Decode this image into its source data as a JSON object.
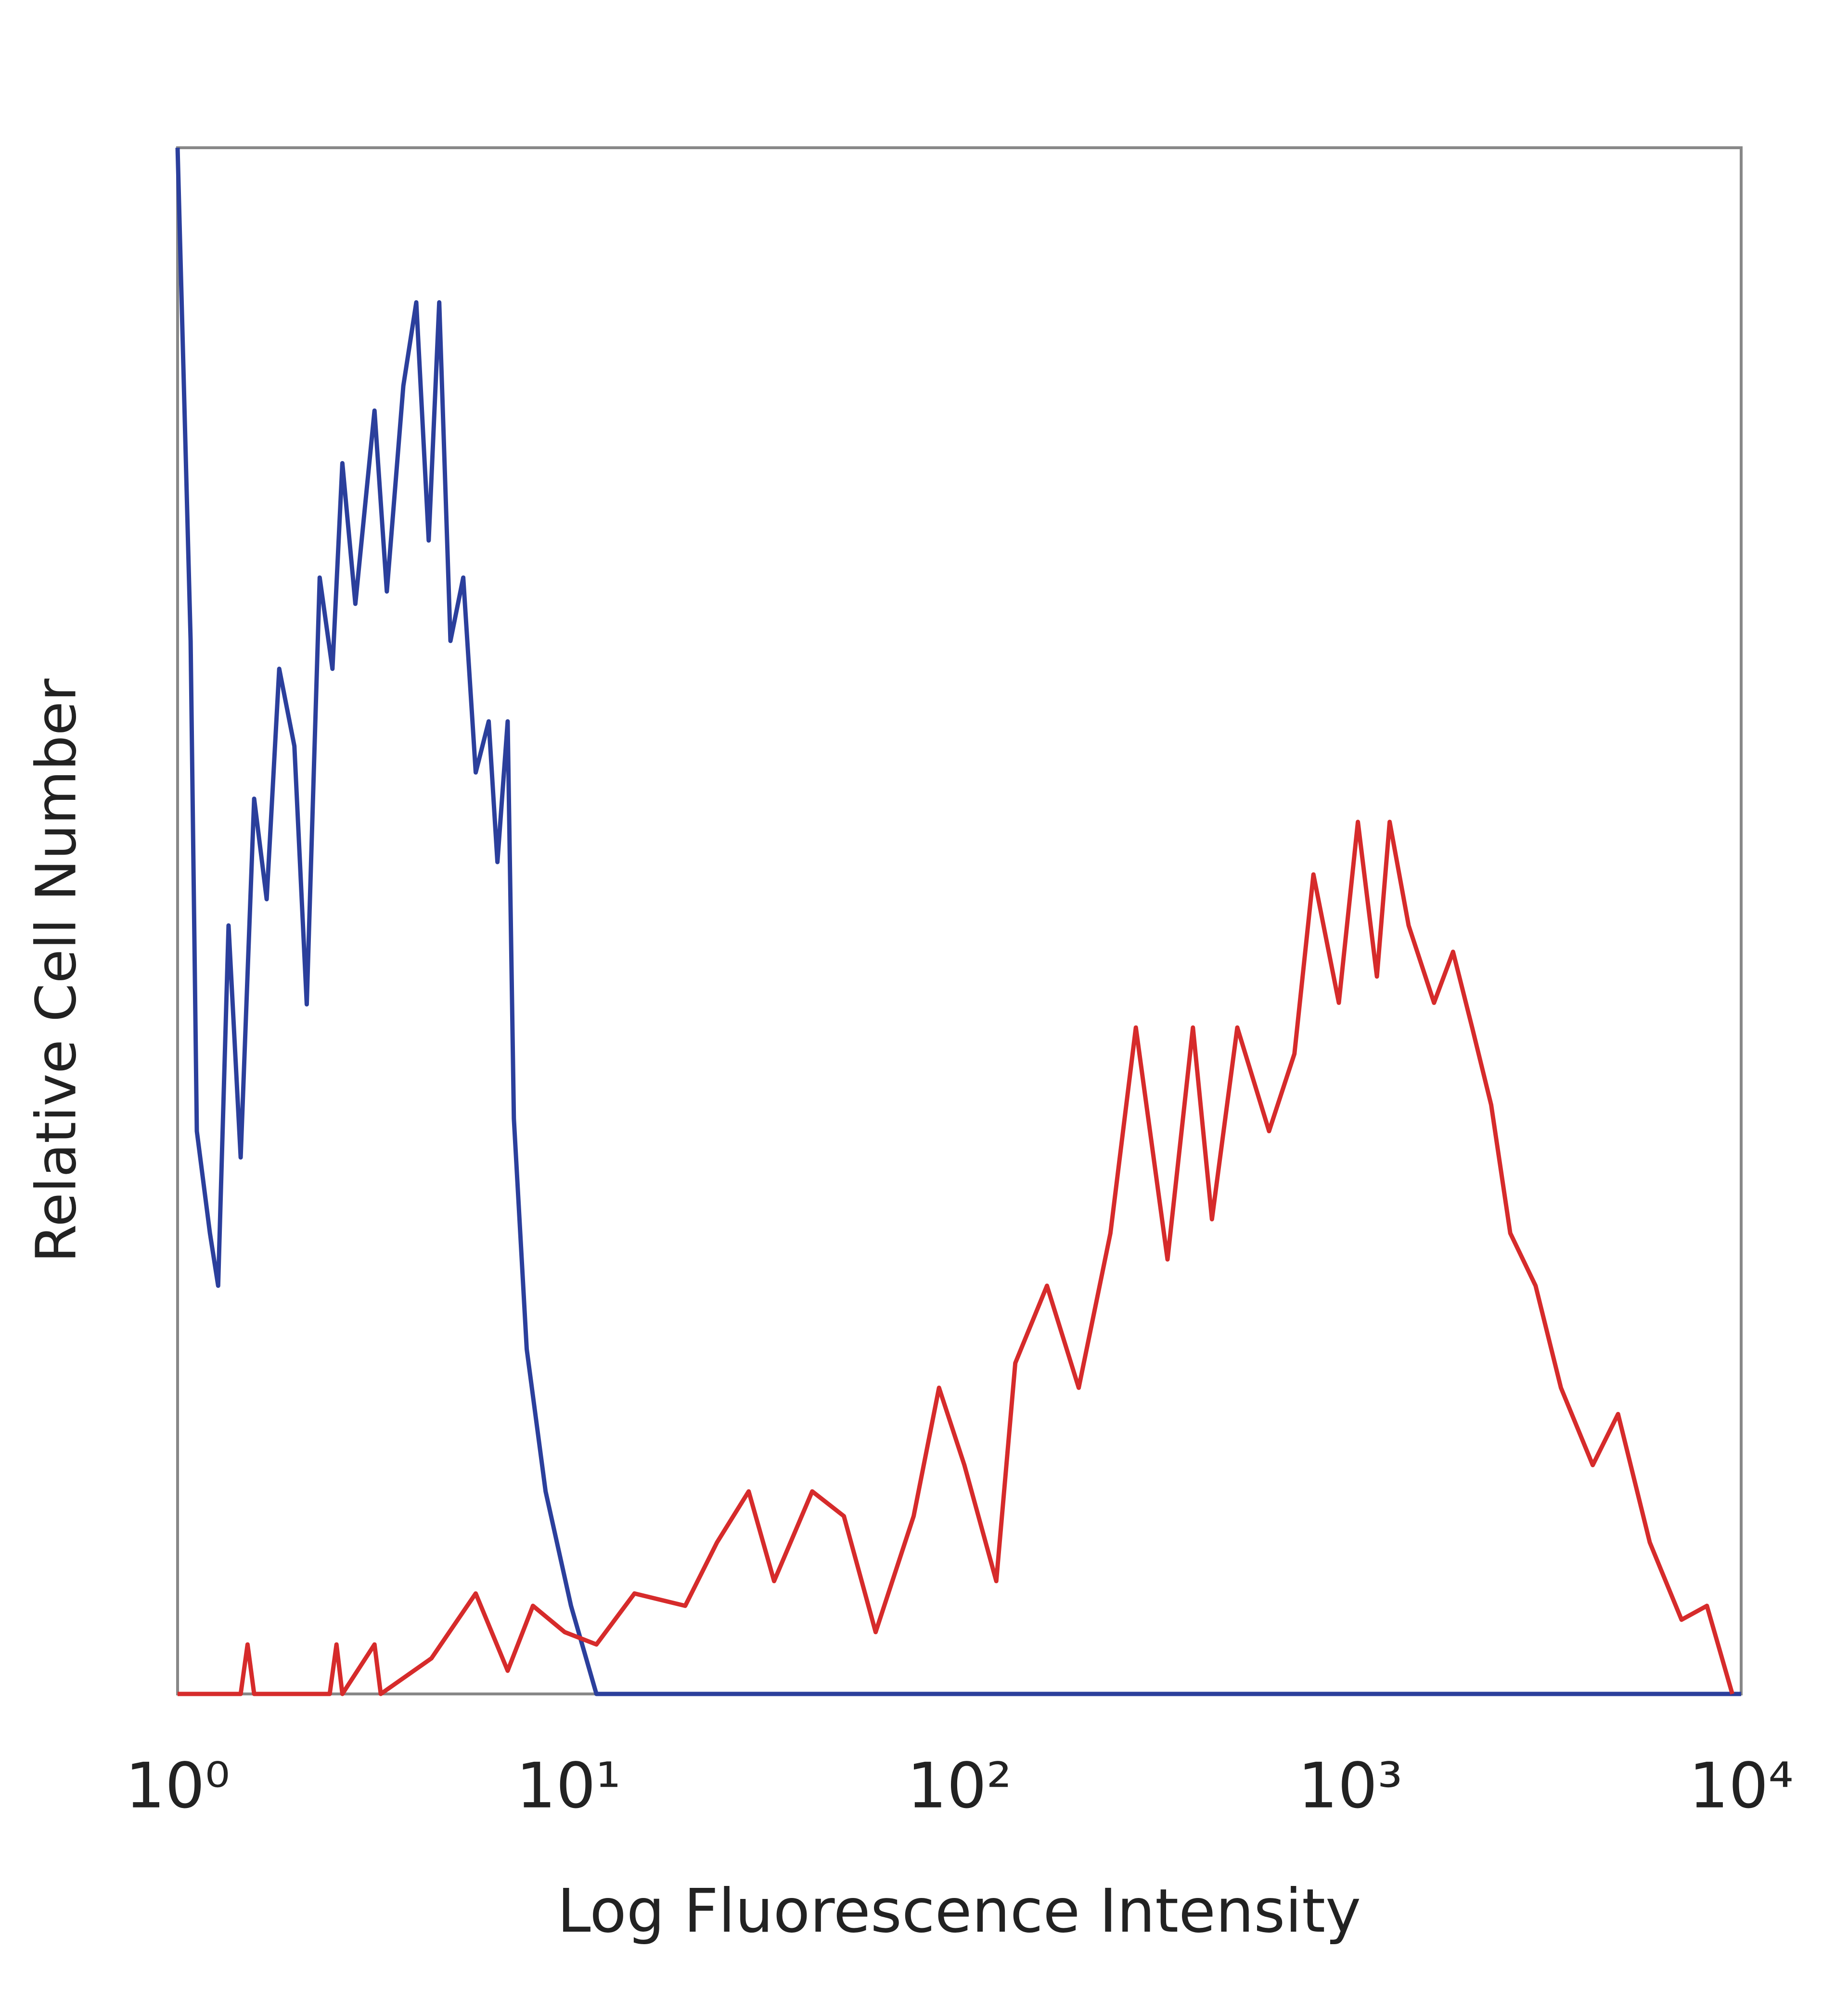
{
  "chart_data": {
    "type": "line",
    "xscale": "log",
    "xlabel": "Log Fluorescence Intensity",
    "ylabel": "Relative Cell Number",
    "xlim": [
      1,
      10000
    ],
    "ylim": [
      0,
      100
    ],
    "xticks": [
      {
        "value": 1,
        "label": "10⁰"
      },
      {
        "value": 10,
        "label": "10¹"
      },
      {
        "value": 100,
        "label": "10²"
      },
      {
        "value": 1000,
        "label": "10³"
      },
      {
        "value": 10000,
        "label": "10⁴"
      }
    ],
    "series": [
      {
        "color": "#2b3f9c",
        "x": [
          1,
          1.08,
          1.12,
          1.21,
          1.27,
          1.35,
          1.45,
          1.57,
          1.69,
          1.82,
          1.99,
          2.14,
          2.31,
          2.49,
          2.64,
          2.85,
          3.19,
          3.43,
          3.78,
          4.08,
          4.39,
          4.67,
          4.99,
          5.38,
          5.79,
          6.25,
          6.58,
          6.99,
          7.25,
          7.82,
          8.74,
          10.15,
          11.79,
          10000
        ],
        "values": [
          100,
          68.1,
          36.4,
          29.8,
          26.4,
          49.7,
          34.7,
          57.9,
          51.4,
          66.3,
          61.3,
          44.6,
          72.2,
          66.3,
          79.6,
          70.5,
          83.0,
          71.3,
          84.6,
          90.0,
          74.6,
          90.0,
          68.1,
          72.2,
          59.6,
          62.9,
          53.8,
          62.9,
          37.2,
          22.3,
          13.1,
          5.7,
          0,
          0
        ]
      },
      {
        "color": "#d62b2b",
        "x": [
          1,
          1.45,
          1.51,
          1.57,
          2.45,
          2.55,
          2.64,
          3.19,
          3.31,
          4.46,
          5.79,
          6.99,
          8.11,
          9.78,
          11.79,
          14.75,
          19.89,
          23.99,
          28.91,
          33.57,
          42.02,
          50.65,
          61.07,
          76.4,
          88.7,
          103.0,
          124.3,
          139.0,
          167.5,
          202.0,
          243.5,
          282.8,
          340.8,
          395.8,
          442.7,
          514.0,
          619.8,
          719.6,
          805,
          935,
          1046,
          1170,
          1261,
          1410,
          1638,
          1832,
          2050,
          2293,
          2566,
          2979,
          3459,
          4172,
          4843,
          5837,
          7039,
          8173,
          9491
        ],
        "values": [
          0,
          0,
          3.2,
          0,
          0,
          3.2,
          0,
          3.2,
          0,
          2.3,
          6.5,
          1.5,
          5.7,
          4.0,
          3.2,
          6.5,
          5.7,
          9.8,
          13.1,
          7.3,
          13.1,
          11.5,
          4.0,
          11.5,
          19.8,
          14.8,
          7.3,
          21.4,
          26.4,
          19.8,
          29.8,
          43.1,
          28.1,
          43.1,
          30.7,
          43.1,
          36.4,
          41.4,
          53.0,
          44.7,
          56.4,
          46.4,
          56.4,
          49.7,
          44.7,
          48.0,
          43.1,
          38.1,
          29.8,
          26.4,
          19.8,
          14.8,
          18.1,
          9.8,
          4.8,
          5.7,
          0
        ]
      }
    ]
  }
}
